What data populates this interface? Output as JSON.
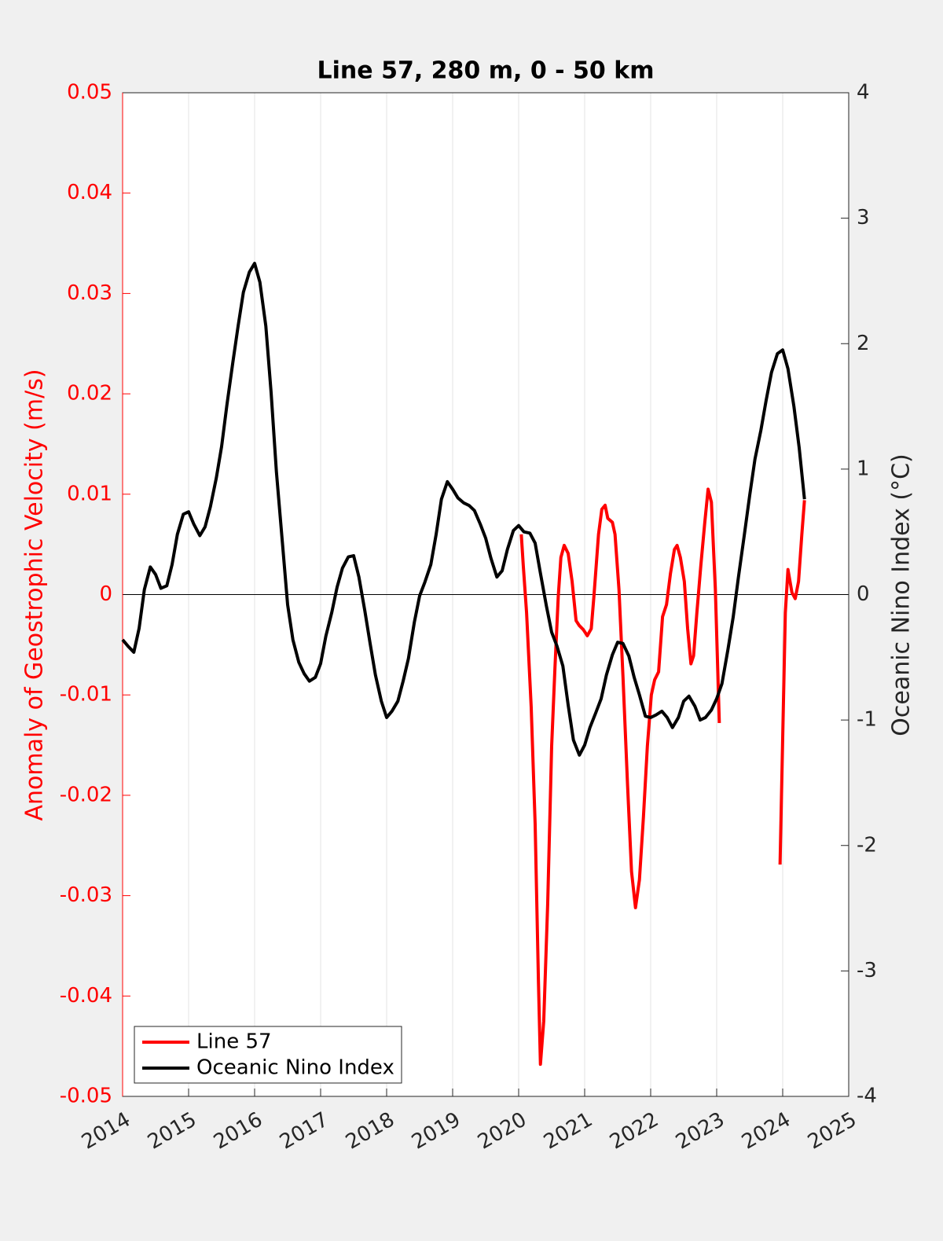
{
  "chart_data": {
    "type": "line",
    "title": "Line 57, 280 m, 0 - 50 km",
    "ylabel": "Anomaly of Geostrophic Velocity (m/s)",
    "y2label": "Oceanic Nino Index (°C)",
    "xlim": [
      2014,
      2025
    ],
    "xticks": [
      2014,
      2015,
      2016,
      2017,
      2018,
      2019,
      2020,
      2021,
      2022,
      2023,
      2024,
      2025
    ],
    "ylim": [
      -0.05,
      0.05
    ],
    "yticks": [
      -0.05,
      -0.04,
      -0.03,
      -0.02,
      -0.01,
      0,
      0.01,
      0.02,
      0.03,
      0.04,
      0.05
    ],
    "y2lim": [
      -4,
      4
    ],
    "y2ticks": [
      -4,
      -3,
      -2,
      -1,
      0,
      1,
      2,
      3,
      4
    ],
    "grid": "x",
    "reference_line": 0,
    "legend": "lower left",
    "ylabel_color": "#ff0000",
    "series": [
      {
        "name": "Line 57",
        "color": "#ff0000",
        "axis": "y",
        "x": [
          2020.04,
          2020.07,
          2020.12,
          2020.19,
          2020.25,
          2020.3,
          2020.33,
          2020.38,
          2020.44,
          2020.5,
          2020.55,
          2020.6,
          2020.64,
          2020.69,
          2020.75,
          2020.81,
          2020.87,
          2020.92,
          2020.98,
          2021.04,
          2021.1,
          2021.14,
          2021.21,
          2021.26,
          2021.31,
          2021.35,
          2021.42,
          2021.46,
          2021.52,
          2021.58,
          2021.65,
          2021.71,
          2021.77,
          2021.83,
          2021.89,
          2021.95,
          2022.01,
          2022.06,
          2022.12,
          2022.18,
          2022.24,
          2022.3,
          2022.36,
          2022.4,
          2022.45,
          2022.51,
          2022.56,
          2022.61,
          2022.65,
          2022.7,
          2022.76,
          2022.82,
          2022.87,
          2022.92,
          2022.98,
          2023.04,
          2023.5,
          2023.96,
          2024.0,
          2024.04,
          2024.08,
          2024.14,
          2024.19,
          2024.24,
          2024.29,
          2024.33
        ],
        "values": [
          0.006,
          0.0029,
          -0.0018,
          -0.0112,
          -0.0229,
          -0.0386,
          -0.0468,
          -0.0425,
          -0.0308,
          -0.0151,
          -0.0073,
          -0.0002,
          0.0037,
          0.0049,
          0.0041,
          0.0013,
          -0.0026,
          -0.0031,
          -0.0035,
          -0.0041,
          -0.0034,
          -0.0002,
          0.006,
          0.0085,
          0.0089,
          0.0076,
          0.0072,
          0.006,
          0.0005,
          -0.0081,
          -0.019,
          -0.0276,
          -0.0312,
          -0.0284,
          -0.0222,
          -0.0151,
          -0.01,
          -0.0085,
          -0.0077,
          -0.0022,
          -0.001,
          0.0021,
          0.0045,
          0.0049,
          0.0037,
          0.0013,
          -0.0034,
          -0.0069,
          -0.0061,
          -0.0018,
          0.0029,
          0.0072,
          0.0105,
          0.0092,
          0.0005,
          -0.0128,
          null,
          -0.0269,
          -0.0143,
          -0.0018,
          0.0025,
          0.0002,
          -0.0004,
          0.0013,
          0.006,
          0.0094
        ]
      },
      {
        "name": "Oceanic Nino Index",
        "color": "#000000",
        "axis": "y2",
        "x": [
          2014.0,
          2014.08,
          2014.17,
          2014.25,
          2014.33,
          2014.42,
          2014.5,
          2014.58,
          2014.67,
          2014.75,
          2014.83,
          2014.92,
          2015.0,
          2015.08,
          2015.17,
          2015.25,
          2015.33,
          2015.42,
          2015.5,
          2015.58,
          2015.67,
          2015.75,
          2015.83,
          2015.92,
          2016.0,
          2016.08,
          2016.17,
          2016.25,
          2016.33,
          2016.42,
          2016.5,
          2016.58,
          2016.67,
          2016.75,
          2016.83,
          2016.92,
          2017.0,
          2017.08,
          2017.17,
          2017.25,
          2017.33,
          2017.42,
          2017.5,
          2017.58,
          2017.67,
          2017.75,
          2017.83,
          2017.92,
          2018.0,
          2018.08,
          2018.17,
          2018.25,
          2018.33,
          2018.42,
          2018.5,
          2018.58,
          2018.67,
          2018.75,
          2018.83,
          2018.92,
          2019.0,
          2019.08,
          2019.17,
          2019.25,
          2019.33,
          2019.42,
          2019.5,
          2019.58,
          2019.67,
          2019.75,
          2019.83,
          2019.92,
          2020.0,
          2020.08,
          2020.17,
          2020.25,
          2020.33,
          2020.42,
          2020.5,
          2020.58,
          2020.67,
          2020.75,
          2020.83,
          2020.92,
          2021.0,
          2021.08,
          2021.17,
          2021.25,
          2021.33,
          2021.42,
          2021.5,
          2021.58,
          2021.67,
          2021.75,
          2021.83,
          2021.92,
          2022.0,
          2022.08,
          2022.17,
          2022.25,
          2022.33,
          2022.42,
          2022.5,
          2022.58,
          2022.67,
          2022.75,
          2022.83,
          2022.92,
          2023.0,
          2023.08,
          2023.17,
          2023.25,
          2023.33,
          2023.42,
          2023.5,
          2023.58,
          2023.67,
          2023.75,
          2023.83,
          2023.92,
          2024.0,
          2024.08,
          2024.17,
          2024.25,
          2024.33
        ],
        "values": [
          -0.36,
          -0.41,
          -0.46,
          -0.27,
          0.04,
          0.22,
          0.16,
          0.05,
          0.07,
          0.24,
          0.48,
          0.64,
          0.66,
          0.56,
          0.47,
          0.54,
          0.7,
          0.93,
          1.18,
          1.51,
          1.85,
          2.14,
          2.41,
          2.57,
          2.64,
          2.49,
          2.14,
          1.61,
          0.98,
          0.42,
          -0.08,
          -0.36,
          -0.54,
          -0.63,
          -0.69,
          -0.66,
          -0.55,
          -0.33,
          -0.14,
          0.06,
          0.21,
          0.3,
          0.31,
          0.14,
          -0.13,
          -0.39,
          -0.64,
          -0.85,
          -0.98,
          -0.93,
          -0.85,
          -0.69,
          -0.51,
          -0.22,
          -0.01,
          0.1,
          0.24,
          0.48,
          0.76,
          0.9,
          0.84,
          0.77,
          0.73,
          0.71,
          0.67,
          0.56,
          0.45,
          0.29,
          0.14,
          0.19,
          0.36,
          0.51,
          0.55,
          0.5,
          0.49,
          0.41,
          0.17,
          -0.09,
          -0.3,
          -0.41,
          -0.57,
          -0.88,
          -1.16,
          -1.28,
          -1.2,
          -1.06,
          -0.94,
          -0.83,
          -0.64,
          -0.48,
          -0.38,
          -0.39,
          -0.49,
          -0.66,
          -0.8,
          -0.97,
          -0.98,
          -0.96,
          -0.93,
          -0.98,
          -1.06,
          -0.98,
          -0.85,
          -0.81,
          -0.89,
          -1.0,
          -0.98,
          -0.92,
          -0.83,
          -0.71,
          -0.44,
          -0.18,
          0.14,
          0.48,
          0.79,
          1.08,
          1.31,
          1.55,
          1.77,
          1.92,
          1.95,
          1.8,
          1.5,
          1.17,
          0.76
        ]
      }
    ]
  }
}
